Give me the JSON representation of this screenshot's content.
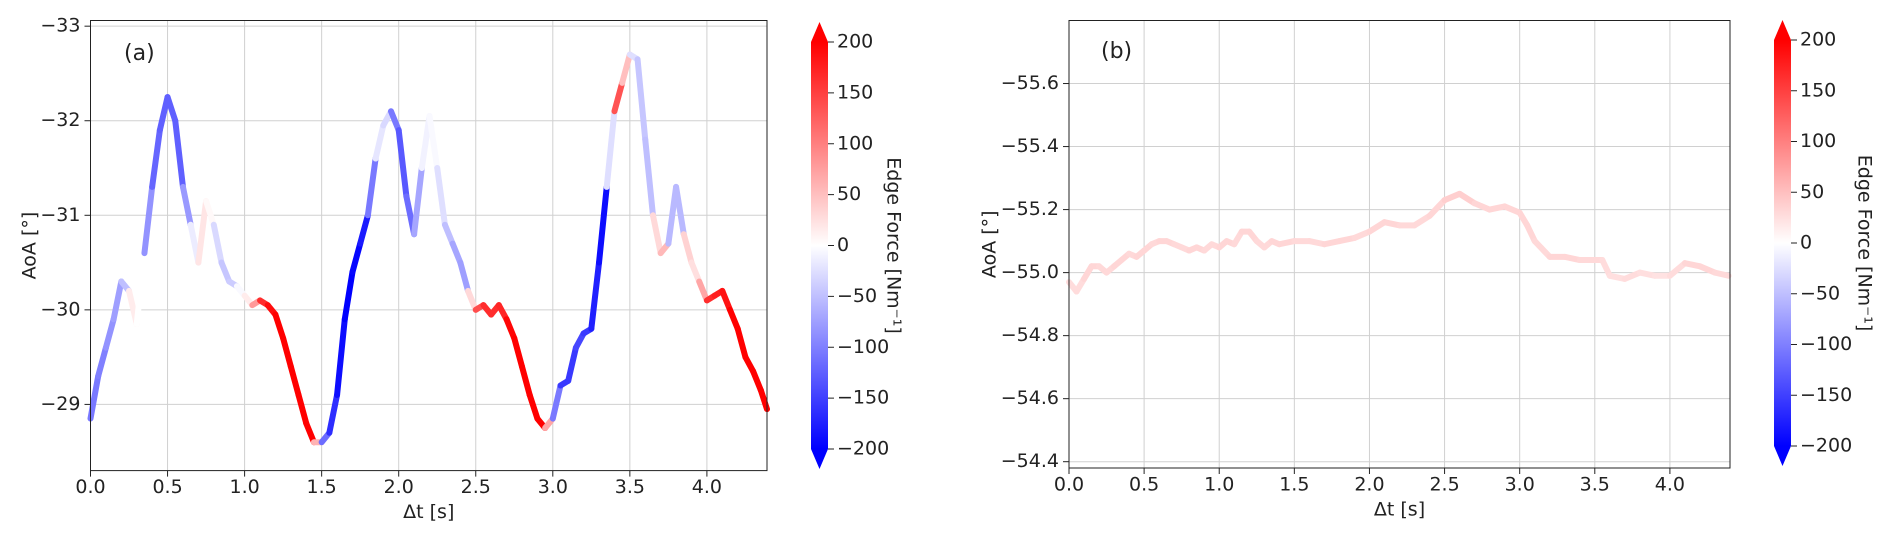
{
  "chart_data": [
    {
      "type": "line",
      "panel_label": "(a)",
      "xlabel": "Δt [s]",
      "ylabel": "AoA [°]",
      "grid": true,
      "x": [
        0,
        0.05,
        0.1,
        0.15,
        0.2,
        0.25,
        0.3,
        0.35,
        0.4,
        0.45,
        0.5,
        0.55,
        0.6,
        0.65,
        0.7,
        0.75,
        0.8,
        0.85,
        0.9,
        0.95,
        1.0,
        1.05,
        1.1,
        1.15,
        1.2,
        1.25,
        1.3,
        1.35,
        1.4,
        1.45,
        1.5,
        1.55,
        1.6,
        1.65,
        1.7,
        1.75,
        1.8,
        1.85,
        1.9,
        1.95,
        2.0,
        2.05,
        2.1,
        2.15,
        2.2,
        2.25,
        2.3,
        2.35,
        2.4,
        2.45,
        2.5,
        2.55,
        2.6,
        2.65,
        2.7,
        2.75,
        2.8,
        2.85,
        2.9,
        2.95,
        3.0,
        3.05,
        3.1,
        3.15,
        3.2,
        3.25,
        3.3,
        3.35,
        3.4,
        3.45,
        3.5,
        3.55,
        3.6,
        3.65,
        3.7,
        3.75,
        3.8,
        3.85,
        3.9,
        3.95,
        4.0,
        4.05,
        4.1,
        4.15,
        4.2,
        4.25,
        4.3,
        4.35,
        4.39
      ],
      "y": [
        -28.85,
        -29.3,
        -29.6,
        -29.9,
        -30.3,
        -30.2,
        -29.85,
        -30.6,
        -31.3,
        -31.9,
        -32.25,
        -32.0,
        -31.3,
        -30.9,
        -30.5,
        -31.15,
        -30.9,
        -30.5,
        -30.3,
        -30.25,
        -30.15,
        -30.05,
        -30.1,
        -30.05,
        -29.95,
        -29.7,
        -29.4,
        -29.1,
        -28.8,
        -28.6,
        -28.6,
        -28.7,
        -29.1,
        -29.9,
        -30.4,
        -30.7,
        -31.0,
        -31.6,
        -31.95,
        -32.1,
        -31.9,
        -31.2,
        -30.8,
        -31.5,
        -32.05,
        -31.5,
        -30.9,
        -30.7,
        -30.5,
        -30.2,
        -30.0,
        -30.05,
        -29.95,
        -30.05,
        -29.9,
        -29.7,
        -29.4,
        -29.1,
        -28.85,
        -28.75,
        -28.85,
        -29.2,
        -29.25,
        -29.6,
        -29.75,
        -29.8,
        -30.5,
        -31.3,
        -32.1,
        -32.4,
        -32.7,
        -32.65,
        -31.8,
        -31.0,
        -30.6,
        -30.7,
        -31.3,
        -30.8,
        -30.5,
        -30.3,
        -30.1,
        -30.15,
        -30.2,
        -30.0,
        -29.8,
        -29.5,
        -29.35,
        -29.15,
        -28.95
      ],
      "edge_force": [
        -100,
        -110,
        -90,
        -80,
        -70,
        -30,
        60,
        -60,
        -110,
        -130,
        -120,
        -130,
        -120,
        -40,
        10,
        30,
        -20,
        -40,
        -50,
        -30,
        20,
        10,
        150,
        180,
        200,
        200,
        200,
        200,
        200,
        200,
        -80,
        -150,
        -180,
        -200,
        -200,
        -190,
        -170,
        -40,
        0,
        -60,
        -150,
        -110,
        -120,
        -20,
        0,
        -10,
        -40,
        -60,
        -80,
        -70,
        130,
        150,
        180,
        150,
        190,
        200,
        200,
        200,
        200,
        200,
        -60,
        -150,
        -160,
        -150,
        -140,
        -170,
        -180,
        -200,
        150,
        120,
        -20,
        -30,
        -60,
        -40,
        100,
        10,
        -120,
        10,
        60,
        -10,
        150,
        180,
        170,
        200,
        200,
        200,
        200,
        200,
        200
      ],
      "xlim": [
        0,
        4.39
      ],
      "ylim": [
        -28.3,
        -33.06
      ],
      "xticks": [
        {
          "value": 0,
          "label": "0.0"
        },
        0.5,
        {
          "value": 1,
          "label": "1.0"
        },
        1.5,
        {
          "value": 2,
          "label": "2.0"
        },
        2.5,
        {
          "value": 3,
          "label": "3.0"
        },
        3.5,
        {
          "value": 4,
          "label": "4.0"
        }
      ],
      "yticks": [
        {
          "value": -33,
          "label": "−33"
        },
        {
          "value": -32,
          "label": "−32"
        },
        {
          "value": -31,
          "label": "−31"
        },
        {
          "value": -30,
          "label": "−30"
        },
        {
          "value": -29,
          "label": "−29"
        }
      ],
      "colorbar": {
        "label": "Edge Force [Nm⁻¹]",
        "colormap": "bwr",
        "extend": "both",
        "lim": [
          -200,
          200
        ],
        "ticks": [
          200,
          150,
          100,
          50,
          0,
          {
            "value": -50,
            "label": "−50"
          },
          {
            "value": -100,
            "label": "−100"
          },
          {
            "value": -150,
            "label": "−150"
          },
          {
            "value": -200,
            "label": "−200"
          }
        ]
      }
    },
    {
      "type": "line",
      "panel_label": "(b)",
      "xlabel": "Δt [s]",
      "ylabel": "AoA [°]",
      "grid": true,
      "x": [
        0,
        0.05,
        0.1,
        0.15,
        0.2,
        0.25,
        0.3,
        0.35,
        0.4,
        0.45,
        0.5,
        0.55,
        0.6,
        0.65,
        0.7,
        0.75,
        0.8,
        0.85,
        0.9,
        0.95,
        1.0,
        1.05,
        1.1,
        1.15,
        1.2,
        1.25,
        1.3,
        1.35,
        1.4,
        1.5,
        1.6,
        1.7,
        1.8,
        1.9,
        2.0,
        2.1,
        2.2,
        2.3,
        2.4,
        2.5,
        2.6,
        2.7,
        2.8,
        2.9,
        3.0,
        3.05,
        3.1,
        3.2,
        3.3,
        3.4,
        3.5,
        3.55,
        3.6,
        3.7,
        3.8,
        3.9,
        4.0,
        4.1,
        4.2,
        4.3,
        4.39
      ],
      "y": [
        -54.97,
        -54.94,
        -54.98,
        -55.02,
        -55.02,
        -55.0,
        -55.02,
        -55.04,
        -55.06,
        -55.05,
        -55.07,
        -55.09,
        -55.1,
        -55.1,
        -55.09,
        -55.08,
        -55.07,
        -55.08,
        -55.07,
        -55.09,
        -55.08,
        -55.1,
        -55.09,
        -55.13,
        -55.13,
        -55.1,
        -55.08,
        -55.1,
        -55.09,
        -55.1,
        -55.1,
        -55.09,
        -55.1,
        -55.11,
        -55.13,
        -55.16,
        -55.15,
        -55.15,
        -55.18,
        -55.23,
        -55.25,
        -55.22,
        -55.2,
        -55.21,
        -55.19,
        -55.15,
        -55.1,
        -55.05,
        -55.05,
        -55.04,
        -55.04,
        -55.04,
        -54.99,
        -54.98,
        -55.0,
        -54.99,
        -54.99,
        -55.03,
        -55.02,
        -55.0,
        -54.99
      ],
      "edge_force": [
        30,
        25,
        30,
        35,
        30,
        30,
        30,
        35,
        30,
        30,
        35,
        30,
        30,
        35,
        30,
        30,
        30,
        35,
        30,
        30,
        30,
        35,
        30,
        30,
        35,
        30,
        30,
        30,
        35,
        30,
        30,
        30,
        35,
        30,
        30,
        35,
        30,
        30,
        30,
        35,
        40,
        35,
        30,
        35,
        30,
        35,
        30,
        30,
        35,
        30,
        30,
        30,
        25,
        25,
        30,
        20,
        25,
        30,
        35,
        30,
        30
      ],
      "xlim": [
        0,
        4.4
      ],
      "ylim": [
        -54.38,
        -55.8
      ],
      "xticks": [
        {
          "value": 0,
          "label": "0.0"
        },
        0.5,
        {
          "value": 1,
          "label": "1.0"
        },
        1.5,
        {
          "value": 2,
          "label": "2.0"
        },
        2.5,
        {
          "value": 3,
          "label": "3.0"
        },
        3.5,
        {
          "value": 4,
          "label": "4.0"
        }
      ],
      "yticks": [
        {
          "value": -55.6,
          "label": "−55.6"
        },
        {
          "value": -55.4,
          "label": "−55.4"
        },
        {
          "value": -55.2,
          "label": "−55.2"
        },
        {
          "value": -55.0,
          "label": "−55.0"
        },
        {
          "value": -54.8,
          "label": "−54.8"
        },
        {
          "value": -54.6,
          "label": "−54.6"
        },
        {
          "value": -54.4,
          "label": "−54.4"
        }
      ],
      "colorbar": {
        "label": "Edge Force [Nm⁻¹]",
        "colormap": "bwr",
        "extend": "both",
        "lim": [
          -200,
          200
        ],
        "ticks": [
          200,
          150,
          100,
          50,
          0,
          {
            "value": -50,
            "label": "−50"
          },
          {
            "value": -100,
            "label": "−100"
          },
          {
            "value": -150,
            "label": "−150"
          },
          {
            "value": -200,
            "label": "−200"
          }
        ]
      }
    }
  ]
}
